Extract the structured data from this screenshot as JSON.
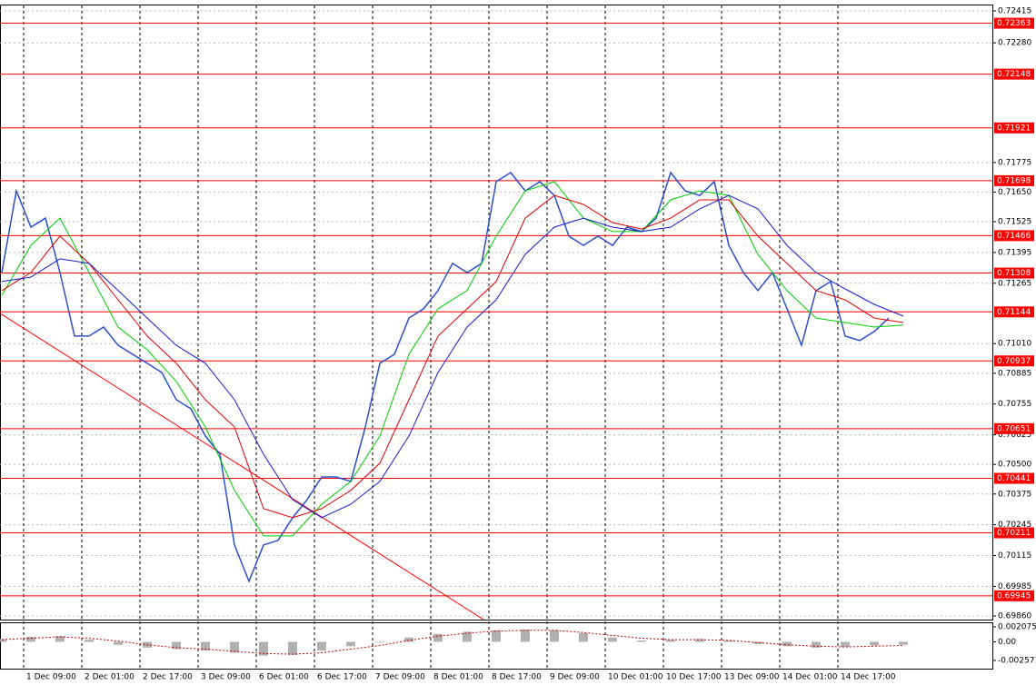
{
  "chart_data": [
    {
      "type": "line",
      "x": [
        -6,
        -2,
        2,
        6,
        10,
        14,
        18,
        22,
        26,
        30,
        34,
        38,
        42,
        46,
        50,
        54,
        58,
        62,
        66,
        70,
        74,
        78,
        82,
        86,
        90,
        94,
        98,
        102,
        106,
        110,
        114,
        118,
        122,
        126,
        130,
        134,
        138,
        142,
        146,
        150,
        154,
        158,
        162,
        166,
        170,
        174,
        178,
        182,
        186,
        190,
        194,
        198,
        202,
        206,
        210,
        214,
        218,
        222,
        226,
        230,
        234,
        238
      ],
      "xlim": [
        -6.5,
        266.5
      ],
      "xticks": [
        {
          "value": 0,
          "label": "1 Dec 09:00"
        },
        {
          "value": 16,
          "label": "2 Dec 01:00"
        },
        {
          "value": 32,
          "label": "2 Dec 17:00"
        },
        {
          "value": 48,
          "label": "3 Dec 09:00"
        },
        {
          "value": 64,
          "label": "6 Dec 01:00"
        },
        {
          "value": 80,
          "label": "6 Dec 17:00"
        },
        {
          "value": 96,
          "label": "7 Dec 09:00"
        },
        {
          "value": 112,
          "label": "8 Dec 01:00"
        },
        {
          "value": 128,
          "label": "8 Dec 17:00"
        },
        {
          "value": 144,
          "label": "9 Dec 09:00"
        },
        {
          "value": 160,
          "label": "10 Dec 01:00"
        },
        {
          "value": 176,
          "label": "10 Dec 17:00"
        },
        {
          "value": 192,
          "label": "13 Dec 09:00"
        },
        {
          "value": 208,
          "label": "14 Dec 01:00"
        },
        {
          "value": 224,
          "label": "14 Dec 17:00"
        }
      ],
      "ylim": [
        0.6986,
        0.72415
      ],
      "yticks": [
        0.72415,
        {
          "value": 0.7228,
          "label": "0.72280"
        },
        0.71775,
        {
          "value": 0.7165,
          "label": "0.71650"
        },
        0.71525,
        0.71395,
        0.71265,
        {
          "value": 0.7101,
          "label": "0.71010"
        },
        0.70885,
        0.70755,
        0.70625,
        {
          "value": 0.705,
          "label": "0.70500"
        },
        0.70375,
        0.70245,
        0.70115,
        0.69985,
        {
          "value": 0.6986,
          "label": "0.69860"
        }
      ],
      "grid": true,
      "levels": [
        0.72363,
        0.72148,
        0.71921,
        0.71698,
        0.71466,
        0.71308,
        0.71144,
        0.70937,
        0.70651,
        0.70441,
        0.70211,
        0.69945
      ],
      "level_color": "#ff0000",
      "trendline": {
        "x": [
          -6.5,
          126.5
        ],
        "values": [
          0.71138,
          0.69845
        ],
        "color": "#ff0000"
      },
      "series": [
        {
          "color": "#2b4fc8",
          "values": [
            0.7131,
            0.71655,
            0.71502,
            0.7154,
            0.7131,
            0.71042,
            0.71042,
            0.7108,
            0.71003,
            0.70965,
            0.70927,
            0.70888,
            0.70773,
            0.70735,
            0.7062,
            0.70543,
            0.7016,
            0.70006,
            0.7016,
            0.70179,
            0.70275,
            0.70351,
            0.70447,
            0.70447,
            0.70428,
            0.70658,
            0.70927,
            0.70965,
            0.71118,
            0.71157,
            0.71234,
            0.71349,
            0.7131,
            0.71349,
            0.71694,
            0.71732,
            0.71655,
            0.71694,
            0.71636,
            0.71464,
            0.71425,
            0.71464,
            0.71425,
            0.71502,
            0.71483,
            0.7154,
            0.71732,
            0.71655,
            0.71636,
            0.71694,
            0.71425,
            0.7131,
            0.71234,
            0.7131,
            0.71157,
            0.71003,
            0.71234,
            0.71272,
            0.71042,
            0.71023,
            0.71061,
            0.71118
          ]
        },
        {
          "color": "#00cc00",
          "x": [
            -6,
            2,
            10,
            18,
            26,
            34,
            42,
            50,
            58,
            66,
            74,
            82,
            90,
            98,
            106,
            114,
            122,
            130,
            138,
            146,
            154,
            162,
            170,
            178,
            186,
            194,
            202,
            210,
            218,
            226,
            234,
            242
          ],
          "values": [
            0.71214,
            0.71425,
            0.7154,
            0.7131,
            0.7108,
            0.70984,
            0.7085,
            0.70658,
            0.7039,
            0.70198,
            0.70198,
            0.70332,
            0.70428,
            0.7062,
            0.70965,
            0.71157,
            0.71234,
            0.71464,
            0.71655,
            0.71694,
            0.7154,
            0.71483,
            0.71483,
            0.71617,
            0.71655,
            0.71636,
            0.71387,
            0.71234,
            0.71118,
            0.71099,
            0.7108,
            0.71088
          ]
        },
        {
          "color": "#dd0000",
          "x": [
            -6,
            2,
            10,
            18,
            26,
            34,
            42,
            50,
            58,
            66,
            74,
            82,
            90,
            98,
            106,
            114,
            122,
            130,
            138,
            146,
            154,
            162,
            170,
            178,
            186,
            194,
            202,
            210,
            218,
            226,
            234,
            242
          ],
          "values": [
            0.71234,
            0.7131,
            0.71464,
            0.71349,
            0.71195,
            0.71042,
            0.70927,
            0.70773,
            0.70658,
            0.70313,
            0.70275,
            0.70313,
            0.7039,
            0.70505,
            0.70773,
            0.71042,
            0.71157,
            0.71272,
            0.7154,
            0.71636,
            0.71598,
            0.71521,
            0.71494,
            0.7154,
            0.71617,
            0.71617,
            0.71464,
            0.71349,
            0.71234,
            0.71195,
            0.71118,
            0.71099
          ]
        },
        {
          "color": "#1a1acc",
          "x": [
            -6,
            2,
            10,
            18,
            26,
            34,
            42,
            50,
            58,
            66,
            74,
            82,
            90,
            98,
            106,
            114,
            122,
            130,
            138,
            146,
            154,
            162,
            170,
            178,
            186,
            194,
            202,
            210,
            218,
            226,
            234,
            242
          ],
          "values": [
            0.71272,
            0.71291,
            0.71368,
            0.71349,
            0.71234,
            0.71118,
            0.71003,
            0.70927,
            0.70773,
            0.70543,
            0.70351,
            0.70275,
            0.70332,
            0.70428,
            0.7062,
            0.70888,
            0.7108,
            0.71195,
            0.71387,
            0.71502,
            0.7154,
            0.71502,
            0.71483,
            0.71502,
            0.71579,
            0.71636,
            0.71579,
            0.71425,
            0.7131,
            0.71241,
            0.71176,
            0.71126
          ]
        }
      ]
    },
    {
      "type": "bar",
      "x": [
        -6,
        2,
        10,
        18,
        26,
        34,
        42,
        50,
        58,
        66,
        74,
        82,
        90,
        98,
        106,
        114,
        122,
        130,
        138,
        146,
        154,
        162,
        170,
        178,
        186,
        194,
        202,
        210,
        218,
        226,
        234,
        242
      ],
      "xlim": [
        -6.5,
        266.5
      ],
      "ylim": [
        -0.002571,
        0.002075
      ],
      "yticks": [
        0.002075,
        {
          "value": 0,
          "label": "0.00"
        },
        -0.002571
      ],
      "color": "#b0b0b0",
      "values": [
        0.0004,
        0.0007,
        0.0008,
        0.0003,
        -0.0004,
        -0.0008,
        -0.001,
        -0.0012,
        -0.0015,
        -0.0019,
        -0.0018,
        -0.0012,
        -0.0006,
        -0.0001,
        0.0006,
        0.0011,
        0.0014,
        0.0016,
        0.0017,
        0.0016,
        0.0012,
        0.0006,
        0.0002,
        0.0003,
        0.0004,
        0.0002,
        -0.0003,
        -0.0006,
        -0.0008,
        -0.0007,
        -0.0005,
        -0.0004
      ],
      "signal": {
        "color": "#cc0000",
        "values": [
          0.0003,
          0.0005,
          0.0007,
          0.0005,
          0.0001,
          -0.0004,
          -0.0008,
          -0.001,
          -0.0013,
          -0.0016,
          -0.0017,
          -0.0015,
          -0.001,
          -0.0005,
          0.0002,
          0.0008,
          0.0012,
          0.0015,
          0.0016,
          0.0016,
          0.0013,
          0.0009,
          0.0005,
          0.0003,
          0.0003,
          0.0002,
          -0.0001,
          -0.0004,
          -0.0006,
          -0.0007,
          -0.0006,
          -0.0005
        ]
      }
    }
  ]
}
